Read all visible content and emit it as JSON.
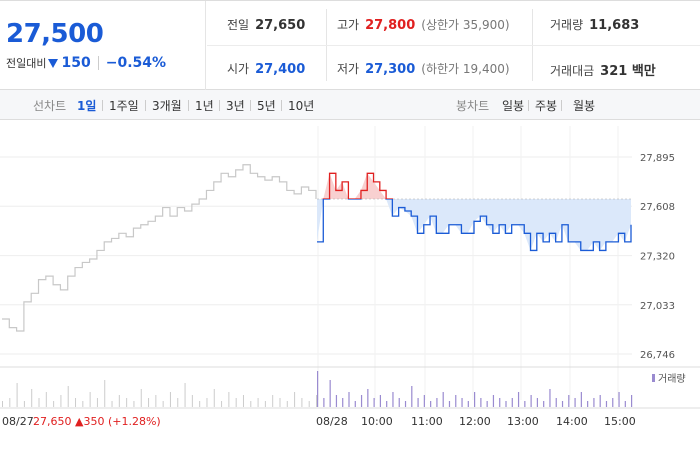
{
  "quote": {
    "price": "27,500",
    "change_label": "전일대비",
    "change_value": "150",
    "change_pct": "−0.54%"
  },
  "stats": {
    "prev_label": "전일",
    "prev_value": "27,650",
    "high_label": "고가",
    "high_value": "27,800",
    "upper_limit": "(상한가 35,900)",
    "volume_label": "거래량",
    "volume_value": "11,683",
    "open_label": "시가",
    "open_value": "27,400",
    "low_label": "저가",
    "low_value": "27,300",
    "lower_limit": "(하한가 19,400)",
    "amount_label": "거래대금",
    "amount_value": "321 백만"
  },
  "period_tabs": {
    "header": "선차트",
    "items": [
      "1일",
      "1주일",
      "3개월",
      "1년",
      "3년",
      "5년",
      "10년"
    ],
    "active": "1일"
  },
  "candle_tabs": {
    "header": "봉차트",
    "items": [
      "일봉",
      "주봉",
      "월봉"
    ]
  },
  "colors": {
    "up": "#e02020",
    "down": "#1a5bd6",
    "prev_day_line": "#c8c8c8",
    "fill": "#dbe8fa"
  },
  "chart_data": {
    "type": "line",
    "ylim": [
      26746,
      28000
    ],
    "y_ticks": [
      "27,895",
      "27,608",
      "27,320",
      "27,033",
      "26,746"
    ],
    "y_tick_values": [
      27895,
      27608,
      27320,
      27033,
      26746
    ],
    "x_ticks": [
      "08/27",
      "08/28",
      "10:00",
      "11:00",
      "12:00",
      "13:00",
      "14:00",
      "15:00"
    ],
    "prev_close": 27650,
    "prev_day_annotation": {
      "date": "08/27",
      "price": "27,650",
      "change": "350",
      "pct": "(+1.28%)"
    },
    "series": [
      {
        "values_prev_day": [
          26950,
          26900,
          26880,
          27050,
          27100,
          27180,
          27200,
          27150,
          27120,
          27200,
          27250,
          27280,
          27300,
          27350,
          27400,
          27420,
          27450,
          27430,
          27480,
          27500,
          27520,
          27550,
          27600,
          27550,
          27600,
          27580,
          27620,
          27650,
          27700,
          27750,
          27800,
          27780,
          27820,
          27850,
          27800,
          27780,
          27760,
          27780,
          27750,
          27700,
          27680,
          27720,
          27700,
          27650
        ],
        "values_today": [
          27400,
          27650,
          27800,
          27700,
          27750,
          27650,
          27650,
          27700,
          27800,
          27750,
          27700,
          27650,
          27550,
          27600,
          27580,
          27550,
          27450,
          27500,
          27550,
          27450,
          27450,
          27500,
          27500,
          27450,
          27450,
          27520,
          27550,
          27500,
          27450,
          27500,
          27450,
          27500,
          27500,
          27450,
          27350,
          27450,
          27400,
          27450,
          27400,
          27500,
          27400,
          27400,
          27350,
          27350,
          27400,
          27350,
          27400,
          27400,
          27450,
          27400,
          27500
        ]
      }
    ],
    "volume_legend": "거래량",
    "volume_prev_day": [
      2,
      3,
      8,
      2,
      6,
      3,
      5,
      2,
      4,
      7,
      3,
      2,
      5,
      3,
      9,
      2,
      4,
      3,
      2,
      6,
      3,
      4,
      2,
      5,
      3,
      8,
      4,
      2,
      3,
      6,
      2,
      5,
      3,
      4,
      2,
      3,
      2,
      4,
      3,
      2,
      5,
      3,
      2,
      4
    ],
    "volume_today": [
      12,
      3,
      9,
      4,
      3,
      5,
      2,
      4,
      6,
      3,
      4,
      2,
      5,
      3,
      2,
      7,
      3,
      4,
      2,
      3,
      5,
      2,
      4,
      3,
      2,
      5,
      3,
      2,
      4,
      3,
      2,
      3,
      5,
      2,
      4,
      3,
      2,
      6,
      3,
      2,
      4,
      3,
      5,
      2,
      3,
      4,
      2,
      3,
      5,
      2,
      4
    ]
  }
}
